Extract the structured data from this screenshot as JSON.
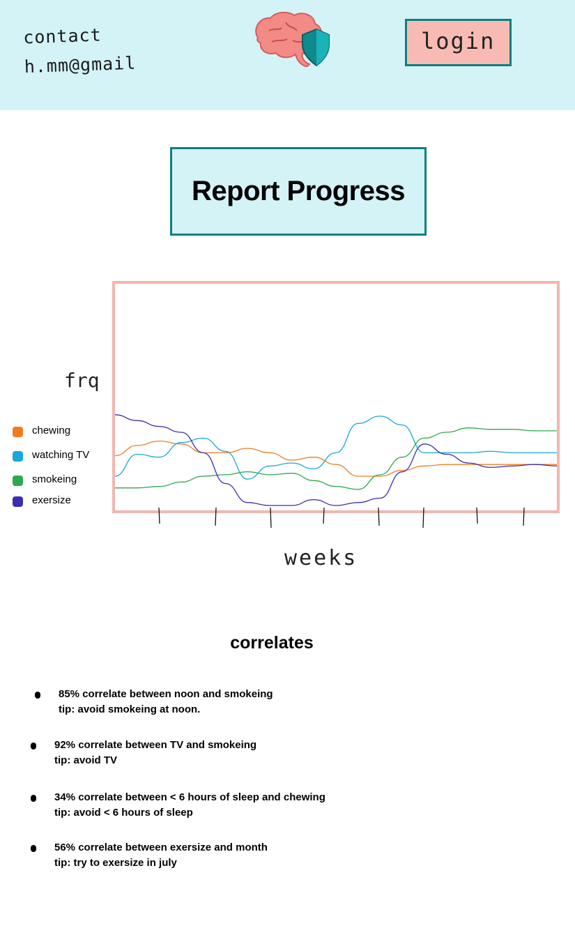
{
  "header": {
    "contact_line1": "contact",
    "contact_line2": "h.mm@gmail",
    "login_label": "login",
    "colors": {
      "background": "#d3f3f7",
      "button": "#f8bbb3",
      "accent": "#0f7f7f"
    }
  },
  "page_title": "Report Progress",
  "chart_data": {
    "type": "line",
    "ylabel": "frq",
    "xlabel": "weeks",
    "x": [
      0,
      0.5,
      1,
      1.5,
      2,
      2.5,
      3,
      3.5,
      4,
      4.5,
      5,
      5.5,
      6,
      6.5,
      7,
      7.5,
      8,
      8.5,
      9,
      9.5,
      10
    ],
    "ylim": [
      0,
      10
    ],
    "grid": false,
    "legend_position": "left",
    "series": [
      {
        "name": "chewing",
        "color": "#f07c22",
        "values": [
          3.4,
          4.1,
          4.4,
          4.2,
          3.6,
          3.6,
          3.9,
          3.6,
          3.1,
          3.3,
          2.8,
          2.0,
          2.0,
          2.4,
          2.7,
          2.8,
          2.8,
          2.8,
          2.8,
          2.8,
          2.8
        ]
      },
      {
        "name": "watching TV",
        "color": "#1aa6dc",
        "values": [
          2.0,
          3.5,
          3.3,
          4.3,
          4.6,
          3.7,
          1.8,
          2.7,
          2.9,
          2.5,
          3.6,
          5.6,
          6.1,
          5.5,
          3.6,
          3.6,
          3.6,
          3.7,
          3.6,
          3.6,
          3.6
        ]
      },
      {
        "name": "smokeing",
        "color": "#2ea84f",
        "values": [
          1.2,
          1.2,
          1.3,
          1.6,
          2.0,
          2.1,
          2.3,
          2.1,
          2.2,
          1.7,
          1.3,
          1.1,
          2.1,
          3.3,
          4.6,
          5.0,
          5.3,
          5.2,
          5.2,
          5.1,
          5.1
        ]
      },
      {
        "name": "exersize",
        "color": "#3a2fb0",
        "values": [
          6.2,
          5.8,
          5.4,
          5.0,
          3.6,
          1.5,
          0.2,
          0.0,
          0.0,
          0.4,
          0.0,
          0.2,
          0.5,
          2.3,
          4.2,
          3.5,
          2.9,
          2.6,
          2.7,
          2.8,
          2.7
        ]
      }
    ]
  },
  "correlates": {
    "title": "correlates",
    "items": [
      {
        "line1": "85% correlate between noon and smokeing",
        "line2": "tip: avoid smokeing at noon."
      },
      {
        "line1": "92% correlate between TV and smokeing",
        "line2": "tip:  avoid TV"
      },
      {
        "line1": "34% correlate between < 6 hours of sleep and chewing",
        "line2": "tip: avoid < 6 hours of sleep"
      },
      {
        "line1": "56% correlate between exersize and month",
        "line2": "tip: try to exersize in july"
      }
    ]
  }
}
